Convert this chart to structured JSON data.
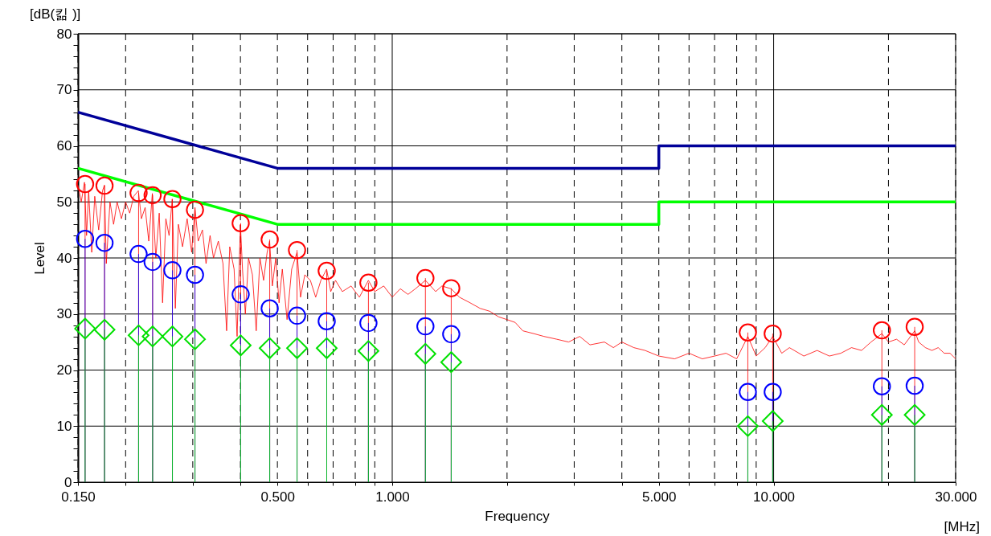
{
  "chart_data": {
    "type": "line",
    "xlabel": "Frequency",
    "ylabel": "Level",
    "annotations": [
      "[dB(킮 )]",
      "[MHz]"
    ],
    "log": "x",
    "grid": true,
    "xlim": [
      0.15,
      30
    ],
    "ylim": [
      0,
      80
    ],
    "xticks": [
      {
        "value": 0.15,
        "label": "0.150"
      },
      {
        "value": 0.2,
        "label": null
      },
      {
        "value": 0.3,
        "label": null
      },
      {
        "value": 0.4,
        "label": null
      },
      {
        "value": 0.5,
        "label": "0.500"
      },
      {
        "value": 0.6,
        "label": null
      },
      {
        "value": 0.7,
        "label": null
      },
      {
        "value": 0.8,
        "label": null
      },
      {
        "value": 0.9,
        "label": null
      },
      {
        "value": 1,
        "label": "1.000"
      },
      {
        "value": 2,
        "label": null
      },
      {
        "value": 3,
        "label": null
      },
      {
        "value": 4,
        "label": null
      },
      {
        "value": 5,
        "label": "5.000"
      },
      {
        "value": 6,
        "label": null
      },
      {
        "value": 7,
        "label": null
      },
      {
        "value": 8,
        "label": null
      },
      {
        "value": 9,
        "label": null
      },
      {
        "value": 10,
        "label": "10.000"
      },
      {
        "value": 20,
        "label": null
      },
      {
        "value": 30,
        "label": "30.000"
      }
    ],
    "yticks": [
      0,
      {
        "value": 2,
        "label": null
      },
      {
        "value": 4,
        "label": null
      },
      {
        "value": 6,
        "label": null
      },
      {
        "value": 8,
        "label": null
      },
      10,
      {
        "value": 12,
        "label": null
      },
      {
        "value": 14,
        "label": null
      },
      {
        "value": 16,
        "label": null
      },
      {
        "value": 18,
        "label": null
      },
      20,
      {
        "value": 22,
        "label": null
      },
      {
        "value": 24,
        "label": null
      },
      {
        "value": 26,
        "label": null
      },
      {
        "value": 28,
        "label": null
      },
      30,
      {
        "value": 32,
        "label": null
      },
      {
        "value": 34,
        "label": null
      },
      {
        "value": 36,
        "label": null
      },
      {
        "value": 38,
        "label": null
      },
      40,
      {
        "value": 42,
        "label": null
      },
      {
        "value": 44,
        "label": null
      },
      {
        "value": 46,
        "label": null
      },
      {
        "value": 48,
        "label": null
      },
      50,
      {
        "value": 52,
        "label": null
      },
      {
        "value": 54,
        "label": null
      },
      {
        "value": 56,
        "label": null
      },
      {
        "value": 58,
        "label": null
      },
      60,
      {
        "value": 62,
        "label": null
      },
      {
        "value": 64,
        "label": null
      },
      {
        "value": 66,
        "label": null
      },
      {
        "value": 68,
        "label": null
      },
      70,
      {
        "value": 72,
        "label": null
      },
      {
        "value": 74,
        "label": null
      },
      {
        "value": 76,
        "label": null
      },
      {
        "value": 78,
        "label": null
      },
      80
    ],
    "series": [
      {
        "color": "#ff0000",
        "line_style": "solid",
        "marker": "none",
        "x": [
          0.15,
          0.153,
          0.156,
          0.158,
          0.16,
          0.163,
          0.166,
          0.17,
          0.174,
          0.176,
          0.178,
          0.182,
          0.186,
          0.19,
          0.195,
          0.2,
          0.205,
          0.21,
          0.216,
          0.22,
          0.225,
          0.23,
          0.235,
          0.24,
          0.245,
          0.25,
          0.255,
          0.26,
          0.265,
          0.27,
          0.275,
          0.282,
          0.29,
          0.298,
          0.304,
          0.31,
          0.318,
          0.325,
          0.333,
          0.34,
          0.35,
          0.36,
          0.368,
          0.375,
          0.385,
          0.392,
          0.4,
          0.405,
          0.412,
          0.42,
          0.43,
          0.44,
          0.45,
          0.46,
          0.47,
          0.477,
          0.485,
          0.495,
          0.505,
          0.515,
          0.53,
          0.545,
          0.563,
          0.575,
          0.59,
          0.61,
          0.63,
          0.65,
          0.673,
          0.69,
          0.71,
          0.74,
          0.78,
          0.82,
          0.866,
          0.9,
          0.95,
          1.0,
          1.05,
          1.1,
          1.15,
          1.222,
          1.3,
          1.35,
          1.428,
          1.5,
          1.6,
          1.7,
          1.8,
          1.9,
          2.0,
          2.1,
          2.2,
          2.35,
          2.5,
          2.7,
          2.9,
          3.1,
          3.3,
          3.6,
          3.8,
          4.0,
          4.3,
          4.6,
          5.0,
          5.5,
          6.0,
          6.5,
          7.0,
          7.5,
          8.0,
          8.557,
          9.0,
          9.5,
          9.944,
          10.5,
          11.0,
          12.0,
          13.0,
          14.0,
          15.0,
          16.0,
          17.0,
          18.0,
          19.22,
          20.0,
          21.0,
          22.0,
          23.43,
          24.0,
          25.0,
          26.0,
          27.0,
          28.0,
          29.0,
          30.0
        ],
        "values": [
          53,
          50,
          53.5,
          44,
          52,
          41,
          51,
          45,
          52,
          53,
          39,
          50,
          46,
          50,
          47,
          50,
          48,
          51,
          52,
          47,
          49,
          43,
          51.5,
          40,
          48,
          32,
          47,
          44,
          50.5,
          31,
          46,
          42,
          47,
          41,
          49,
          43,
          45,
          39,
          44,
          40,
          43,
          39,
          27,
          42,
          38,
          26,
          46,
          38,
          30,
          40,
          37,
          27,
          40,
          36,
          41,
          43,
          35,
          40,
          32,
          38,
          29,
          38,
          41,
          33,
          37,
          36,
          33,
          36,
          38,
          34,
          36,
          34,
          35,
          33,
          36,
          34,
          35,
          33,
          34.5,
          33.5,
          34.5,
          36,
          34,
          35,
          34.5,
          33,
          32,
          31,
          30.5,
          29.5,
          29,
          28.5,
          27,
          26.5,
          26,
          25.5,
          25,
          26,
          24.5,
          25,
          24,
          25,
          24,
          23.5,
          22.5,
          22,
          23,
          22,
          22.5,
          23,
          22,
          26,
          22.5,
          24,
          26,
          23,
          24,
          22.5,
          23.5,
          22.5,
          23,
          24,
          23.5,
          25,
          26.5,
          25,
          25.5,
          24.5,
          27,
          25,
          24,
          23.5,
          24,
          23,
          23,
          22
        ]
      },
      {
        "color": "#000099",
        "line_style": "solid",
        "marker": "none",
        "x": [
          0.15,
          0.5,
          5,
          5,
          30
        ],
        "values": [
          66,
          56,
          56,
          60,
          60
        ]
      },
      {
        "color": "#00ff00",
        "line_style": "solid",
        "marker": "none",
        "x": [
          0.15,
          0.5,
          5,
          5,
          30
        ],
        "values": [
          56,
          46,
          46,
          50,
          50
        ]
      },
      {
        "type": "lollipop",
        "color": "#ff0000",
        "marker": "circle",
        "x": [
          0.1566,
          0.1761,
          0.2163,
          0.2354,
          0.2653,
          0.304,
          0.4006,
          0.4773,
          0.5629,
          0.6734,
          0.8662,
          1.2218,
          1.4278,
          8.557,
          9.944,
          19.22,
          23.43
        ],
        "values": [
          53.2,
          52.9,
          51.6,
          51.2,
          50.5,
          48.6,
          46.2,
          43.3,
          41.4,
          37.7,
          35.6,
          36.4,
          34.6,
          26.7,
          26.5,
          27.1,
          27.7
        ]
      },
      {
        "type": "lollipop",
        "color": "#0000ff",
        "marker": "circle",
        "x": [
          0.1566,
          0.1761,
          0.2163,
          0.2354,
          0.2653,
          0.304,
          0.4006,
          0.4773,
          0.5629,
          0.6734,
          0.8662,
          1.2218,
          1.4278,
          8.557,
          9.944,
          19.22,
          23.43
        ],
        "values": [
          43.4,
          42.7,
          40.7,
          39.3,
          37.8,
          37.0,
          33.5,
          31.0,
          29.7,
          28.7,
          28.4,
          27.8,
          26.4,
          16.1,
          16.1,
          17.1,
          17.2
        ]
      },
      {
        "type": "lollipop",
        "color": "#00e000",
        "marker": "diamond",
        "x": [
          0.1566,
          0.1761,
          0.2163,
          0.2354,
          0.2653,
          0.304,
          0.4006,
          0.4773,
          0.5629,
          0.6734,
          0.8662,
          1.2218,
          1.4278,
          8.557,
          9.944,
          19.22,
          23.43
        ],
        "values": [
          27.4,
          27.2,
          26.2,
          26.0,
          26.0,
          25.5,
          24.4,
          23.9,
          23.9,
          23.9,
          23.4,
          22.9,
          21.4,
          10.0,
          10.9,
          12.0,
          12.0
        ]
      }
    ]
  }
}
